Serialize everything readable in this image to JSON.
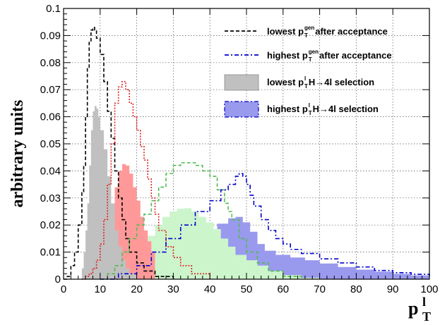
{
  "chart_data": {
    "type": "histogram",
    "xlabel": "p",
    "xlabel_sub": "T",
    "xlabel_sup": "l",
    "ylabel": "arbitrary units",
    "xlim": [
      0,
      100
    ],
    "ylim": [
      0,
      0.1
    ],
    "x_ticks": [
      "0",
      "10",
      "20",
      "30",
      "40",
      "50",
      "60",
      "70",
      "80",
      "90",
      "100"
    ],
    "y_ticks": [
      "0",
      "0.01",
      "0.02",
      "0.03",
      "0.04",
      "0.05",
      "0.06",
      "0.07",
      "0.08",
      "0.09",
      "0.1"
    ],
    "grid": true,
    "legend_position": "top-right",
    "colors": {
      "gen_lowest": "#000000",
      "gen_highest": "#0000cc",
      "sel_lowest": "#c0c0c0",
      "sel_highest": "#9999ee",
      "red_fill": "#ff9999",
      "red_line": "#dd2222",
      "green_fill": "#ccf5cc",
      "green_line": "#55bb55"
    },
    "legend": [
      {
        "pre": "lowest  p",
        "sup": "gen",
        "sub": "T",
        "post": " after acceptance"
      },
      {
        "pre": "highest p",
        "sup": "gen",
        "sub": "T",
        "post": " after acceptance"
      },
      {
        "pre": "lowest p",
        "sup": "l",
        "sub": "T",
        "post": "  H→4l selection"
      },
      {
        "pre": "highest p",
        "sup": "l",
        "sub": "T",
        "post": " H→4l selection"
      }
    ],
    "series": [
      {
        "key": "sel_highest",
        "style": "fill",
        "points": [
          [
            10,
            0
          ],
          [
            14,
            0.0005
          ],
          [
            18,
            0.002
          ],
          [
            22,
            0.005
          ],
          [
            26,
            0.008
          ],
          [
            30,
            0.011
          ],
          [
            34,
            0.014
          ],
          [
            38,
            0.017
          ],
          [
            42,
            0.0205
          ],
          [
            45,
            0.0225
          ],
          [
            47,
            0.023
          ],
          [
            49,
            0.021
          ],
          [
            51,
            0.0175
          ],
          [
            53,
            0.013
          ],
          [
            55,
            0.0105
          ],
          [
            58,
            0.009
          ],
          [
            62,
            0.008
          ],
          [
            66,
            0.007
          ],
          [
            70,
            0.0058
          ],
          [
            75,
            0.0045
          ],
          [
            80,
            0.0035
          ],
          [
            85,
            0.0028
          ],
          [
            90,
            0.002
          ],
          [
            95,
            0.0014
          ],
          [
            100,
            0.0008
          ]
        ]
      },
      {
        "key": "green_fill",
        "style": "fill",
        "points": [
          [
            15,
            0
          ],
          [
            17,
            0.003
          ],
          [
            19,
            0.008
          ],
          [
            21,
            0.012
          ],
          [
            23,
            0.016
          ],
          [
            25,
            0.02
          ],
          [
            27,
            0.023
          ],
          [
            29,
            0.025
          ],
          [
            31,
            0.026
          ],
          [
            33,
            0.0262
          ],
          [
            35,
            0.025
          ],
          [
            37,
            0.023
          ],
          [
            39,
            0.021
          ],
          [
            41,
            0.0185
          ],
          [
            43,
            0.015
          ],
          [
            45,
            0.012
          ],
          [
            47,
            0.009
          ],
          [
            50,
            0.007
          ],
          [
            53,
            0.005
          ],
          [
            56,
            0.003
          ],
          [
            60,
            0.0015
          ],
          [
            65,
            0.0005
          ],
          [
            70,
            0
          ]
        ]
      },
      {
        "key": "red_fill",
        "style": "fill",
        "points": [
          [
            9,
            0
          ],
          [
            10,
            0.002
          ],
          [
            11,
            0.008
          ],
          [
            12,
            0.016
          ],
          [
            13,
            0.027
          ],
          [
            14,
            0.034
          ],
          [
            15,
            0.04
          ],
          [
            16,
            0.0425
          ],
          [
            17,
            0.042
          ],
          [
            18,
            0.039
          ],
          [
            19,
            0.034
          ],
          [
            20,
            0.029
          ],
          [
            21,
            0.023
          ],
          [
            22,
            0.018
          ],
          [
            23,
            0.014
          ],
          [
            24,
            0.01
          ],
          [
            25,
            0.008
          ]
        ]
      },
      {
        "key": "sel_lowest",
        "style": "fill",
        "points": [
          [
            4,
            0
          ],
          [
            5,
            0.004
          ],
          [
            5.5,
            0.01
          ],
          [
            6,
            0.018
          ],
          [
            6.5,
            0.028
          ],
          [
            7,
            0.042
          ],
          [
            7.5,
            0.055
          ],
          [
            8,
            0.062
          ],
          [
            8.5,
            0.064
          ],
          [
            9,
            0.063
          ],
          [
            9.5,
            0.06
          ],
          [
            10,
            0.055
          ],
          [
            11,
            0.048
          ],
          [
            12,
            0.038
          ],
          [
            13,
            0.028
          ],
          [
            14,
            0.018
          ],
          [
            15,
            0.012
          ],
          [
            16,
            0.007
          ],
          [
            17,
            0.004
          ],
          [
            18,
            0.002
          ],
          [
            20,
            0
          ]
        ]
      },
      {
        "key": "gen_lowest",
        "style": "dashed",
        "points": [
          [
            0,
            0
          ],
          [
            1,
            0.001
          ],
          [
            2,
            0.005
          ],
          [
            3,
            0.01
          ],
          [
            4,
            0.02
          ],
          [
            5,
            0.032
          ],
          [
            5.5,
            0.042
          ],
          [
            6,
            0.06
          ],
          [
            6.5,
            0.078
          ],
          [
            7,
            0.088
          ],
          [
            7.5,
            0.092
          ],
          [
            8,
            0.093
          ],
          [
            8.5,
            0.092
          ],
          [
            9,
            0.089
          ],
          [
            10,
            0.083
          ],
          [
            11,
            0.073
          ],
          [
            12,
            0.062
          ],
          [
            13,
            0.052
          ],
          [
            14,
            0.04
          ],
          [
            15,
            0.03
          ],
          [
            16,
            0.022
          ],
          [
            17,
            0.015
          ],
          [
            18,
            0.01
          ],
          [
            20,
            0.006
          ],
          [
            22,
            0.003
          ],
          [
            25,
            0.001
          ],
          [
            30,
            0
          ]
        ]
      },
      {
        "key": "red_line",
        "style": "dotted",
        "points": [
          [
            5,
            0
          ],
          [
            6,
            0.001
          ],
          [
            7,
            0.002
          ],
          [
            8,
            0.004
          ],
          [
            9,
            0.007
          ],
          [
            10,
            0.013
          ],
          [
            11,
            0.022
          ],
          [
            12,
            0.035
          ],
          [
            13,
            0.05
          ],
          [
            14,
            0.065
          ],
          [
            15,
            0.071
          ],
          [
            16,
            0.073
          ],
          [
            17,
            0.07
          ],
          [
            18,
            0.065
          ],
          [
            19,
            0.06
          ],
          [
            20,
            0.055
          ],
          [
            21,
            0.049
          ],
          [
            22,
            0.044
          ],
          [
            23,
            0.037
          ],
          [
            24,
            0.03
          ],
          [
            25,
            0.024
          ],
          [
            26,
            0.018
          ],
          [
            28,
            0.012
          ],
          [
            30,
            0.008
          ],
          [
            32,
            0.005
          ],
          [
            35,
            0.002
          ],
          [
            40,
            0
          ]
        ]
      },
      {
        "key": "green_line",
        "style": "dashed",
        "points": [
          [
            10,
            0
          ],
          [
            12,
            0.002
          ],
          [
            14,
            0.005
          ],
          [
            16,
            0.01
          ],
          [
            18,
            0.015
          ],
          [
            20,
            0.02
          ],
          [
            22,
            0.024
          ],
          [
            24,
            0.029
          ],
          [
            26,
            0.034
          ],
          [
            28,
            0.039
          ],
          [
            30,
            0.042
          ],
          [
            32,
            0.043
          ],
          [
            34,
            0.043
          ],
          [
            36,
            0.042
          ],
          [
            38,
            0.04
          ],
          [
            40,
            0.038
          ],
          [
            42,
            0.033
          ],
          [
            44,
            0.028
          ],
          [
            45,
            0.025
          ],
          [
            46,
            0.022
          ],
          [
            48,
            0.015
          ],
          [
            50,
            0.01
          ],
          [
            53,
            0.006
          ],
          [
            56,
            0.003
          ],
          [
            60,
            0.001
          ],
          [
            65,
            0
          ]
        ]
      },
      {
        "key": "gen_highest",
        "style": "dashdot",
        "points": [
          [
            10,
            0
          ],
          [
            15,
            0.002
          ],
          [
            20,
            0.005
          ],
          [
            24,
            0.01
          ],
          [
            28,
            0.015
          ],
          [
            32,
            0.02
          ],
          [
            36,
            0.025
          ],
          [
            40,
            0.029
          ],
          [
            43,
            0.033
          ],
          [
            45,
            0.035
          ],
          [
            47,
            0.038
          ],
          [
            48,
            0.039
          ],
          [
            49,
            0.038
          ],
          [
            50,
            0.035
          ],
          [
            51,
            0.031
          ],
          [
            52,
            0.027
          ],
          [
            54,
            0.022
          ],
          [
            56,
            0.018
          ],
          [
            58,
            0.015
          ],
          [
            60,
            0.013
          ],
          [
            62,
            0.011
          ],
          [
            65,
            0.0095
          ],
          [
            70,
            0.0075
          ],
          [
            75,
            0.006
          ],
          [
            80,
            0.0045
          ],
          [
            85,
            0.0032
          ],
          [
            90,
            0.0024
          ],
          [
            95,
            0.0018
          ],
          [
            100,
            0.0012
          ]
        ]
      }
    ]
  }
}
